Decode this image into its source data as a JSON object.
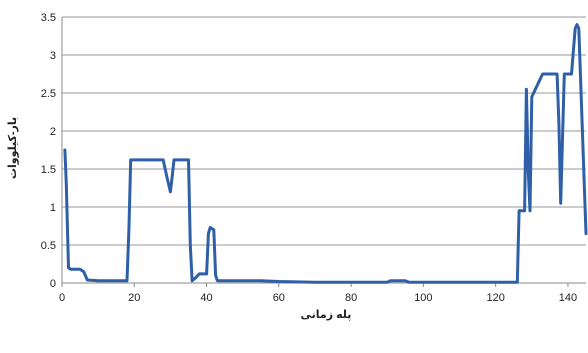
{
  "chart_data": {
    "type": "line",
    "title": "",
    "xlabel": "پله زمانی",
    "ylabel": "بار-کیلووات",
    "xlim": [
      0,
      145
    ],
    "ylim": [
      0,
      3.5
    ],
    "x_ticks": [
      0,
      20,
      40,
      60,
      80,
      100,
      120,
      140
    ],
    "y_ticks": [
      0,
      0.5,
      1,
      1.5,
      2,
      2.5,
      3,
      3.5
    ],
    "y_tick_labels": [
      "0",
      "0.5",
      "1",
      "1.5",
      "2",
      "2.5",
      "3",
      "3.5"
    ],
    "grid": "horizontal",
    "legend": "none",
    "series": [
      {
        "color": "#2f5fa7",
        "x": [
          0.8,
          1.2,
          1.8,
          2.5,
          5,
          6,
          7,
          10,
          15,
          18,
          18.5,
          19,
          25,
          27,
          28,
          29,
          30,
          30.5,
          31,
          34,
          35,
          35.5,
          36,
          37,
          38,
          39,
          40,
          40.5,
          41,
          42,
          42.5,
          43,
          50,
          55,
          60,
          70,
          80,
          90,
          91,
          95,
          96,
          100,
          110,
          120,
          126,
          126.5,
          127,
          128,
          128.5,
          129,
          129.5,
          130,
          131,
          133,
          134,
          136,
          137,
          137.5,
          138,
          139,
          140,
          141,
          142,
          142.5,
          143,
          144,
          145
        ],
        "values": [
          1.75,
          1.3,
          0.2,
          0.18,
          0.18,
          0.15,
          0.04,
          0.03,
          0.03,
          0.03,
          0.7,
          1.62,
          1.62,
          1.62,
          1.62,
          1.4,
          1.2,
          1.4,
          1.62,
          1.62,
          1.62,
          0.5,
          0.03,
          0.07,
          0.12,
          0.12,
          0.12,
          0.65,
          0.73,
          0.7,
          0.1,
          0.03,
          0.03,
          0.03,
          0.02,
          0.01,
          0.01,
          0.01,
          0.03,
          0.03,
          0.01,
          0.01,
          0.01,
          0.01,
          0.01,
          0.95,
          0.95,
          0.95,
          2.55,
          1.5,
          0.95,
          2.45,
          2.55,
          2.75,
          2.75,
          2.75,
          2.75,
          2.1,
          1.05,
          2.75,
          2.75,
          2.75,
          3.35,
          3.4,
          3.35,
          2.0,
          0.65
        ]
      }
    ]
  }
}
